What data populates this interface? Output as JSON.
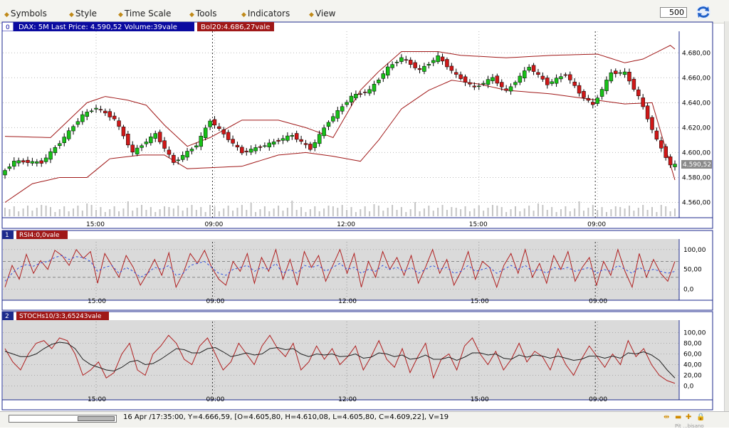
{
  "menu": [
    {
      "label": "Symbols"
    },
    {
      "label": "Style"
    },
    {
      "label": "Time Scale"
    },
    {
      "label": "Tools"
    },
    {
      "label": "Indicators"
    },
    {
      "label": "View"
    }
  ],
  "bars_count": "500",
  "icons": {
    "menu_marker": "diamond-icon",
    "refresh": "refresh-icon"
  },
  "colors": {
    "up": "#18c018",
    "down": "#d01818",
    "band": "#a01818",
    "rsi_signal": "#3050e0",
    "panel_border": "#1c2a8c",
    "tag_bg": "#a01818",
    "main_tag_bg": "#0a0aa0"
  },
  "panels": {
    "main": {
      "index": "0",
      "tag": "DAX: 5M Last Price: 4.590,52 Volume:39vale",
      "tag2": "Bol20:4.686,27vale",
      "last_price_label": "4.590,52"
    },
    "rsi": {
      "index": "1",
      "tag": "RSI4:0,0vale"
    },
    "stoch": {
      "index": "2",
      "tag": "STOCHs10/3:3,65243vale"
    }
  },
  "status": {
    "text": "16 Apr /17:35:00, Y=4.666,59, [O=4.605,80, H=4.610,08, L=4.605,80, C=4.609,22], V=19",
    "corner_text": "Pit ...bisano",
    "icons": [
      "expand-icon",
      "minimize-icon",
      "add-icon",
      "lock-icon"
    ]
  },
  "chart_data": [
    {
      "type": "candlestick",
      "title": "DAX: 5M",
      "ylim": [
        4550,
        4695
      ],
      "y_ticks": [
        "4.680,00",
        "4.660,00",
        "4.640,00",
        "4.620,00",
        "4.600,00",
        "4.580,00",
        "4.560,00"
      ],
      "y_tick_values": [
        4680,
        4660,
        4640,
        4620,
        4600,
        4580,
        4560
      ],
      "x_tick_labels": [
        "15:00",
        "09:00",
        "12:00",
        "15:00",
        "09:00"
      ],
      "x_tick_bar_index": [
        20,
        46,
        75,
        104,
        130
      ],
      "session_breaks": [
        46,
        130
      ],
      "grid": true,
      "last_price": 4590.52,
      "anchors": [
        [
          0,
          4582
        ],
        [
          3,
          4593
        ],
        [
          9,
          4592
        ],
        [
          13,
          4608
        ],
        [
          18,
          4630
        ],
        [
          21,
          4636
        ],
        [
          25,
          4627
        ],
        [
          29,
          4600
        ],
        [
          34,
          4615
        ],
        [
          38,
          4592
        ],
        [
          43,
          4606
        ],
        [
          46,
          4626
        ],
        [
          50,
          4611
        ],
        [
          53,
          4600
        ],
        [
          59,
          4607
        ],
        [
          64,
          4614
        ],
        [
          68,
          4603
        ],
        [
          72,
          4625
        ],
        [
          77,
          4645
        ],
        [
          81,
          4650
        ],
        [
          85,
          4668
        ],
        [
          88,
          4676
        ],
        [
          92,
          4666
        ],
        [
          96,
          4677
        ],
        [
          100,
          4662
        ],
        [
          104,
          4652
        ],
        [
          108,
          4660
        ],
        [
          111,
          4649
        ],
        [
          116,
          4669
        ],
        [
          120,
          4655
        ],
        [
          124,
          4663
        ],
        [
          127,
          4648
        ],
        [
          130,
          4638
        ],
        [
          134,
          4664
        ],
        [
          137,
          4664
        ],
        [
          140,
          4645
        ],
        [
          144,
          4610
        ],
        [
          147,
          4590
        ]
      ],
      "bands": {
        "upper": [
          [
            0,
            4613
          ],
          [
            10,
            4612
          ],
          [
            18,
            4640
          ],
          [
            22,
            4645
          ],
          [
            27,
            4642
          ],
          [
            31,
            4638
          ],
          [
            35,
            4622
          ],
          [
            40,
            4605
          ],
          [
            45,
            4612
          ],
          [
            52,
            4626
          ],
          [
            60,
            4626
          ],
          [
            66,
            4620
          ],
          [
            72,
            4612
          ],
          [
            78,
            4650
          ],
          [
            82,
            4665
          ],
          [
            87,
            4681
          ],
          [
            95,
            4681
          ],
          [
            100,
            4678
          ],
          [
            110,
            4676
          ],
          [
            120,
            4678
          ],
          [
            130,
            4679
          ],
          [
            136,
            4672
          ],
          [
            140,
            4675
          ],
          [
            146,
            4686
          ],
          [
            147,
            4683
          ]
        ],
        "lower": [
          [
            0,
            4560
          ],
          [
            6,
            4575
          ],
          [
            12,
            4580
          ],
          [
            18,
            4580
          ],
          [
            23,
            4595
          ],
          [
            30,
            4598
          ],
          [
            35,
            4598
          ],
          [
            40,
            4587
          ],
          [
            46,
            4588
          ],
          [
            52,
            4589
          ],
          [
            60,
            4598
          ],
          [
            66,
            4600
          ],
          [
            72,
            4597
          ],
          [
            78,
            4593
          ],
          [
            82,
            4610
          ],
          [
            87,
            4635
          ],
          [
            93,
            4650
          ],
          [
            98,
            4658
          ],
          [
            104,
            4655
          ],
          [
            110,
            4650
          ],
          [
            120,
            4647
          ],
          [
            130,
            4642
          ],
          [
            136,
            4639
          ],
          [
            142,
            4640
          ],
          [
            147,
            4578
          ]
        ]
      },
      "volume": "relative"
    },
    {
      "type": "line",
      "title": "RSI4",
      "ylim": [
        -10,
        105
      ],
      "y_ticks": [
        "100,00",
        "50,00",
        "0,0"
      ],
      "y_tick_values": [
        100,
        50,
        0
      ],
      "levels": [
        70,
        30
      ],
      "x_tick_labels": [
        "15:00",
        "09:00",
        "12:00",
        "15:00",
        "09:00"
      ],
      "x_tick_bar_index": [
        20,
        46,
        75,
        104,
        130
      ],
      "series": [
        {
          "color": "#b02020",
          "values": [
            5,
            60,
            25,
            88,
            40,
            72,
            50,
            98,
            85,
            60,
            100,
            78,
            95,
            15,
            90,
            60,
            30,
            85,
            55,
            10,
            40,
            75,
            35,
            92,
            5,
            40,
            90,
            65,
            98,
            55,
            25,
            10,
            70,
            45,
            90,
            15,
            80,
            45,
            100,
            25,
            75,
            10,
            95,
            55,
            85,
            20,
            60,
            100,
            40,
            90,
            5,
            70,
            30,
            95,
            50,
            80,
            35,
            85,
            15,
            55,
            100,
            40,
            75,
            10,
            45,
            95,
            25,
            70,
            55,
            5,
            60,
            90,
            40,
            100,
            30,
            65,
            15,
            85,
            50,
            95,
            20,
            55,
            80,
            10,
            70,
            35,
            100,
            45,
            5,
            90,
            30,
            75,
            40,
            20,
            70
          ]
        },
        {
          "color": "#3050e0",
          "dashed": true,
          "values": [
            20,
            40,
            55,
            62,
            58,
            66,
            70,
            80,
            85,
            75,
            82,
            80,
            70,
            45,
            55,
            60,
            40,
            55,
            45,
            30,
            40,
            55,
            50,
            60,
            35,
            40,
            60,
            65,
            70,
            55,
            40,
            35,
            50,
            55,
            60,
            45,
            55,
            50,
            65,
            40,
            50,
            40,
            60,
            55,
            60,
            45,
            55,
            65,
            50,
            55,
            40,
            50,
            45,
            60,
            50,
            55,
            45,
            55,
            40,
            50,
            60,
            50,
            55,
            40,
            45,
            60,
            45,
            50,
            55,
            40,
            50,
            60,
            50,
            60,
            45,
            50,
            40,
            55,
            50,
            55,
            45,
            50,
            55,
            40,
            50,
            45,
            60,
            50,
            40,
            55,
            45,
            50,
            45,
            40,
            45
          ]
        }
      ]
    },
    {
      "type": "line",
      "title": "STOCHs10/3",
      "ylim": [
        -10,
        110
      ],
      "y_ticks": [
        "100,00",
        "80,00",
        "60,00",
        "40,00",
        "20,00",
        "0,0"
      ],
      "y_tick_values": [
        100,
        80,
        60,
        40,
        20,
        0
      ],
      "x_tick_labels": [
        "15:00",
        "09:00",
        "12:00",
        "15:00",
        "09:00"
      ],
      "x_tick_bar_index": [
        20,
        46,
        75,
        104,
        130
      ],
      "series": [
        {
          "color": "#b02020",
          "values": [
            70,
            45,
            30,
            60,
            80,
            85,
            70,
            90,
            85,
            60,
            20,
            30,
            45,
            15,
            25,
            60,
            80,
            30,
            20,
            60,
            75,
            95,
            80,
            50,
            40,
            75,
            90,
            60,
            30,
            45,
            80,
            60,
            40,
            75,
            95,
            70,
            55,
            80,
            30,
            45,
            75,
            50,
            70,
            40,
            55,
            75,
            30,
            55,
            85,
            50,
            35,
            70,
            25,
            55,
            80,
            15,
            50,
            60,
            30,
            75,
            90,
            60,
            40,
            65,
            30,
            50,
            80,
            45,
            65,
            55,
            30,
            70,
            40,
            20,
            50,
            75,
            55,
            35,
            60,
            40,
            85,
            55,
            70,
            40,
            20,
            10,
            5
          ]
        },
        {
          "color": "#222222",
          "values": [
            65,
            60,
            55,
            55,
            60,
            70,
            78,
            82,
            80,
            70,
            50,
            40,
            35,
            30,
            28,
            35,
            45,
            48,
            40,
            42,
            50,
            60,
            70,
            68,
            62,
            62,
            70,
            72,
            64,
            55,
            58,
            62,
            58,
            60,
            70,
            72,
            68,
            70,
            60,
            55,
            60,
            58,
            60,
            55,
            56,
            60,
            52,
            54,
            62,
            60,
            55,
            58,
            50,
            52,
            58,
            50,
            50,
            54,
            48,
            54,
            62,
            62,
            58,
            60,
            52,
            50,
            58,
            54,
            58,
            56,
            52,
            56,
            52,
            48,
            50,
            56,
            56,
            52,
            56,
            52,
            62,
            60,
            64,
            58,
            48,
            30,
            15
          ]
        }
      ]
    }
  ]
}
